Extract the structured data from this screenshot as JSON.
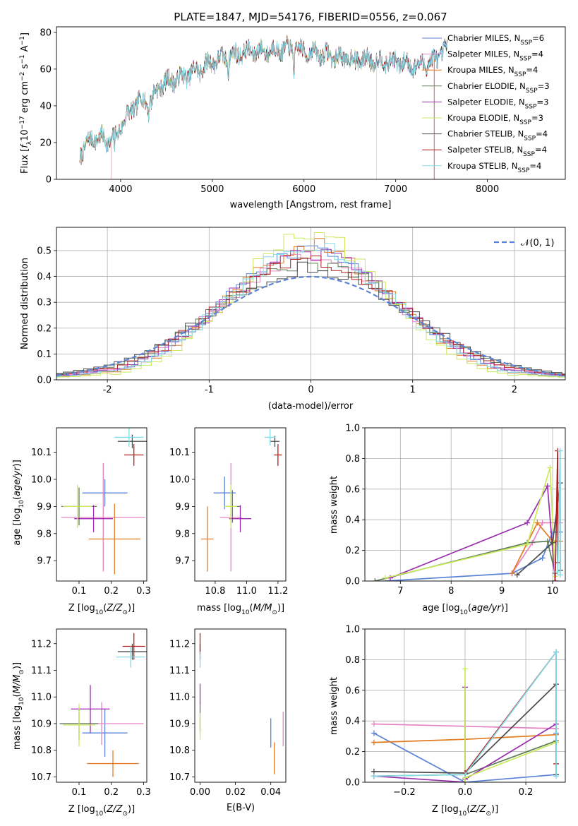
{
  "colors": {
    "Chabrier MILES": "#5b84d8",
    "Salpeter MILES": "#e684c3",
    "Kroupa MILES": "#e37b22",
    "Chabrier ELODIE": "#5e7d56",
    "Salpeter ELODIE": "#9a2eae",
    "Kroupa ELODIE": "#c9ea5b",
    "Chabrier STELIB": "#4b4b4b",
    "Salpeter STELIB": "#b11f1f",
    "Kroupa STELIB": "#82dbe6",
    "normal": "#5b84d8"
  },
  "chart_data": [
    {
      "id": "spectrum",
      "type": "line",
      "title": "PLATE=1847, MJD=54176, FIBERID=0556, z=0.067",
      "xlabel": "wavelength [Angstrom, rest frame]",
      "ylabel": "Flux [f_λ 10^-17 erg cm^-2 s^-1 A^-1]",
      "xlim": [
        3300,
        8850
      ],
      "ylim": [
        0,
        83
      ],
      "xticks": [
        4000,
        5000,
        6000,
        7000,
        8000
      ],
      "yticks": [
        0,
        20,
        40,
        60,
        80
      ],
      "grid": false,
      "legend_position": "top-right",
      "continuum_knots": {
        "x": [
          3550,
          3700,
          3900,
          4050,
          4200,
          4300,
          4450,
          4700,
          5000,
          5300,
          5600,
          5850,
          6100,
          6400,
          6700,
          7000,
          7200,
          7400,
          7550
        ],
        "y": [
          14,
          23,
          21,
          33,
          43,
          42,
          52,
          56,
          64,
          69,
          70,
          71,
          69,
          66,
          65,
          64,
          62,
          64,
          71
        ]
      },
      "series": [
        {
          "label": "Chabrier MILES",
          "nssp": "6",
          "drop": null
        },
        {
          "label": "Salpeter MILES",
          "nssp": "4",
          "drop": null
        },
        {
          "label": "Kroupa MILES",
          "nssp": "4",
          "drop": null
        },
        {
          "label": "Chabrier ELODIE",
          "nssp": "3",
          "drop": null
        },
        {
          "label": "Salpeter ELODIE",
          "nssp": "3",
          "drop": null
        },
        {
          "label": "Kroupa ELODIE",
          "nssp": "3",
          "drop": 6790
        },
        {
          "label": "Chabrier STELIB",
          "nssp": "4",
          "drop": null
        },
        {
          "label": "Salpeter STELIB",
          "nssp": "4",
          "drop": 7420
        },
        {
          "label": "Kroupa STELIB",
          "nssp": "4",
          "drop": null
        }
      ],
      "low_cutoff": 3900
    },
    {
      "id": "residual-histograms",
      "type": "histogram",
      "xlabel": "(data-model)/error",
      "ylabel": "Normed distribution",
      "xlim": [
        -2.5,
        2.5
      ],
      "ylim": [
        0,
        0.59
      ],
      "xticks": [
        -2,
        -1,
        0,
        1,
        2
      ],
      "yticks": [
        0.0,
        0.1,
        0.2,
        0.3,
        0.4,
        0.5
      ],
      "grid": true,
      "bin_width": 0.1,
      "peaks": [
        0.5,
        0.47,
        0.52,
        0.45,
        0.49,
        0.56,
        0.43,
        0.46,
        0.51
      ],
      "legend": "𝒩(0, 1)",
      "legend_position": "top-right"
    },
    {
      "id": "age-vs-Z",
      "type": "errorbar",
      "xlabel": "Z [log10(Z/Z⊙)]",
      "ylabel": "age [log10(age/yr)]",
      "xlim": [
        0.03,
        0.31
      ],
      "ylim": [
        9.625,
        10.19
      ],
      "xticks": [
        0.1,
        0.2,
        0.3
      ],
      "yticks": [
        9.7,
        9.8,
        9.9,
        10.0,
        10.1
      ],
      "points": [
        {
          "series": "Chabrier MILES",
          "x": 0.18,
          "y": 9.95,
          "xerr": 0.07,
          "yerr": 0.05
        },
        {
          "series": "Salpeter MILES",
          "x": 0.175,
          "y": 9.86,
          "xerr": 0.13,
          "yerr": 0.2
        },
        {
          "series": "Kroupa MILES",
          "x": 0.21,
          "y": 9.78,
          "xerr": 0.08,
          "yerr": 0.13
        },
        {
          "series": "Chabrier ELODIE",
          "x": 0.1,
          "y": 9.9,
          "xerr": 0.055,
          "yerr": 0.07
        },
        {
          "series": "Salpeter ELODIE",
          "x": 0.145,
          "y": 9.855,
          "xerr": 0.06,
          "yerr": 0.05
        },
        {
          "series": "Kroupa ELODIE",
          "x": 0.095,
          "y": 9.9,
          "xerr": 0.045,
          "yerr": 0.08
        },
        {
          "series": "Chabrier STELIB",
          "x": 0.265,
          "y": 10.14,
          "xerr": 0.045,
          "yerr": 0.025
        },
        {
          "series": "Salpeter STELIB",
          "x": 0.27,
          "y": 10.09,
          "xerr": 0.03,
          "yerr": 0.04
        },
        {
          "series": "Kroupa STELIB",
          "x": 0.255,
          "y": 10.155,
          "xerr": 0.045,
          "yerr": 0.035
        }
      ]
    },
    {
      "id": "age-vs-mass",
      "type": "errorbar",
      "xlabel": "mass [log10(M/M⊙)]",
      "ylabel": "",
      "xlim": [
        10.67,
        11.25
      ],
      "ylim": [
        9.625,
        10.19
      ],
      "xticks": [
        10.8,
        11.0,
        11.2
      ],
      "yticks": [
        9.7,
        9.8,
        9.9,
        10.0,
        10.1
      ],
      "points": [
        {
          "series": "Chabrier MILES",
          "x": 10.86,
          "y": 9.95,
          "xerr": 0.07,
          "yerr": 0.06
        },
        {
          "series": "Salpeter MILES",
          "x": 10.9,
          "y": 9.86,
          "xerr": 0.07,
          "yerr": 0.2
        },
        {
          "series": "Kroupa MILES",
          "x": 10.75,
          "y": 9.78,
          "xerr": 0.04,
          "yerr": 0.12
        },
        {
          "series": "Chabrier ELODIE",
          "x": 10.91,
          "y": 9.9,
          "xerr": 0.05,
          "yerr": 0.06
        },
        {
          "series": "Salpeter ELODIE",
          "x": 10.96,
          "y": 9.855,
          "xerr": 0.07,
          "yerr": 0.05
        },
        {
          "series": "Kroupa ELODIE",
          "x": 10.9,
          "y": 9.9,
          "xerr": 0.04,
          "yerr": 0.08
        },
        {
          "series": "Chabrier STELIB",
          "x": 11.18,
          "y": 10.14,
          "xerr": 0.03,
          "yerr": 0.02
        },
        {
          "series": "Salpeter STELIB",
          "x": 11.2,
          "y": 10.09,
          "xerr": 0.025,
          "yerr": 0.04
        },
        {
          "series": "Kroupa STELIB",
          "x": 11.15,
          "y": 10.155,
          "xerr": 0.035,
          "yerr": 0.03
        }
      ]
    },
    {
      "id": "massweight-vs-age",
      "type": "line",
      "xlabel": "age [log10(age/yr)]",
      "ylabel": "mass weight",
      "xlim": [
        6.3,
        10.25
      ],
      "ylim": [
        0,
        1.0
      ],
      "xticks": [
        7,
        8,
        9,
        10
      ],
      "xticklabels": [
        "7",
        "8",
        "9",
        "10"
      ],
      "yticks": [
        0.0,
        0.2,
        0.4,
        0.6,
        0.8,
        1.0
      ],
      "grid": true,
      "series": [
        {
          "name": "Chabrier MILES",
          "x": [
            6.7,
            9.2,
            9.8,
            10.0,
            10.15
          ],
          "y": [
            0.0,
            0.05,
            0.15,
            0.32,
            0.32
          ]
        },
        {
          "name": "Salpeter MILES",
          "x": [
            9.2,
            9.6,
            9.8,
            10.15
          ],
          "y": [
            0.05,
            0.25,
            0.38,
            0.38
          ]
        },
        {
          "name": "Kroupa MILES",
          "x": [
            9.2,
            9.7,
            10.0,
            10.15
          ],
          "y": [
            0.05,
            0.38,
            0.26,
            0.26
          ]
        },
        {
          "name": "Chabrier ELODIE",
          "x": [
            6.5,
            9.5,
            9.9,
            10.05
          ],
          "y": [
            0.0,
            0.25,
            0.26,
            0.05
          ]
        },
        {
          "name": "Salpeter ELODIE",
          "x": [
            6.8,
            9.5,
            9.9,
            10.05
          ],
          "y": [
            0.02,
            0.38,
            0.62,
            0.0
          ]
        },
        {
          "name": "Kroupa ELODIE",
          "x": [
            6.7,
            9.5,
            9.95,
            10.05
          ],
          "y": [
            0.02,
            0.24,
            0.74,
            0.03
          ]
        },
        {
          "name": "Chabrier STELIB",
          "x": [
            9.3,
            10.0,
            10.15,
            10.15
          ],
          "y": [
            0.04,
            0.25,
            0.64,
            0.07
          ]
        },
        {
          "name": "Salpeter STELIB",
          "x": [
            10.05,
            10.1,
            10.1
          ],
          "y": [
            0.0,
            0.85,
            0.12
          ]
        },
        {
          "name": "Kroupa STELIB",
          "x": [
            10.1,
            10.15,
            10.15
          ],
          "y": [
            0.06,
            0.85,
            0.04
          ]
        }
      ]
    },
    {
      "id": "mass-vs-Z",
      "type": "errorbar",
      "xlabel": "Z [log10(Z/Z⊙)]",
      "ylabel": "mass [log10(M/M⊙)]",
      "xlim": [
        0.03,
        0.31
      ],
      "ylim": [
        10.68,
        11.255
      ],
      "xticks": [
        0.1,
        0.2,
        0.3
      ],
      "yticks": [
        10.7,
        10.8,
        10.9,
        11.0,
        11.1,
        11.2
      ],
      "points": [
        {
          "series": "Chabrier MILES",
          "x": 0.18,
          "y": 10.865,
          "xerr": 0.07,
          "yerr": 0.09
        },
        {
          "series": "Salpeter MILES",
          "x": 0.17,
          "y": 10.9,
          "xerr": 0.13,
          "yerr": 0.08
        },
        {
          "series": "Kroupa MILES",
          "x": 0.205,
          "y": 10.75,
          "xerr": 0.08,
          "yerr": 0.05
        },
        {
          "series": "Chabrier ELODIE",
          "x": 0.1,
          "y": 10.9,
          "xerr": 0.06,
          "yerr": 0.06
        },
        {
          "series": "Salpeter ELODIE",
          "x": 0.135,
          "y": 10.955,
          "xerr": 0.06,
          "yerr": 0.09
        },
        {
          "series": "Kroupa ELODIE",
          "x": 0.1,
          "y": 10.895,
          "xerr": 0.05,
          "yerr": 0.08
        },
        {
          "series": "Chabrier STELIB",
          "x": 0.265,
          "y": 11.17,
          "xerr": 0.045,
          "yerr": 0.03
        },
        {
          "series": "Salpeter STELIB",
          "x": 0.27,
          "y": 11.19,
          "xerr": 0.035,
          "yerr": 0.05
        },
        {
          "series": "Kroupa STELIB",
          "x": 0.26,
          "y": 11.15,
          "xerr": 0.045,
          "yerr": 0.04
        }
      ]
    },
    {
      "id": "mass-vs-EBV",
      "type": "errorbar",
      "xlabel": "E(B-V)",
      "ylabel": "",
      "xlim": [
        -0.003,
        0.0485
      ],
      "ylim": [
        10.68,
        11.255
      ],
      "xticks": [
        0.0,
        0.02,
        0.04
      ],
      "xticklabels": [
        "0.00",
        "0.02",
        "0.04"
      ],
      "yticks": [
        10.7,
        10.8,
        10.9,
        11.0,
        11.1,
        11.2
      ],
      "points": [
        {
          "series": "Chabrier MILES",
          "x": 0.04,
          "y": 10.865,
          "xerr": 0,
          "yerr": 0.055
        },
        {
          "series": "Salpeter MILES",
          "x": 0.047,
          "y": 10.88,
          "xerr": 0,
          "yerr": 0.065
        },
        {
          "series": "Kroupa MILES",
          "x": 0.042,
          "y": 10.77,
          "xerr": 0,
          "yerr": 0.06
        },
        {
          "series": "Chabrier ELODIE",
          "x": 0.0,
          "y": 10.92,
          "xerr": 0,
          "yerr": 0.05
        },
        {
          "series": "Salpeter ELODIE",
          "x": 0.0,
          "y": 11.01,
          "xerr": 0,
          "yerr": 0.04
        },
        {
          "series": "Kroupa ELODIE",
          "x": 0.0,
          "y": 10.89,
          "xerr": 0,
          "yerr": 0.05
        },
        {
          "series": "Chabrier STELIB",
          "x": 0.0,
          "y": 11.17,
          "xerr": 0,
          "yerr": 0.03
        },
        {
          "series": "Salpeter STELIB",
          "x": 0.0,
          "y": 11.2,
          "xerr": 0,
          "yerr": 0.04
        },
        {
          "series": "Kroupa STELIB",
          "x": 0.0,
          "y": 11.14,
          "xerr": 0,
          "yerr": 0.03
        }
      ]
    },
    {
      "id": "massweight-vs-Z",
      "type": "line",
      "xlabel": "Z [log10(Z/Z⊙)]",
      "ylabel": "mass weight",
      "xlim": [
        -0.33,
        0.33
      ],
      "ylim": [
        0,
        1.0
      ],
      "xticks": [
        -0.2,
        0.0,
        0.2
      ],
      "xticklabels": [
        "−0.2",
        "0.0",
        "0.2"
      ],
      "yticks": [
        0.0,
        0.2,
        0.4,
        0.6,
        0.8,
        1.0
      ],
      "grid": true,
      "series": [
        {
          "name": "Chabrier MILES",
          "x": [
            -0.3,
            0.0,
            0.3,
            0.3
          ],
          "y": [
            0.32,
            0.0,
            0.05,
            0.32
          ]
        },
        {
          "name": "Salpeter MILES",
          "x": [
            -0.3,
            0.3
          ],
          "y": [
            0.38,
            0.35
          ]
        },
        {
          "name": "Kroupa MILES",
          "x": [
            -0.3,
            0.0,
            0.3
          ],
          "y": [
            0.26,
            0.28,
            0.31
          ]
        },
        {
          "name": "Chabrier ELODIE",
          "x": [
            -0.3,
            0.0,
            0.3
          ],
          "y": [
            0.04,
            0.05,
            0.27
          ]
        },
        {
          "name": "Salpeter ELODIE",
          "x": [
            -0.3,
            0.0,
            0.0,
            0.0,
            0.3
          ],
          "y": [
            0.04,
            0.0,
            0.62,
            0.02,
            0.38
          ]
        },
        {
          "name": "Kroupa ELODIE",
          "x": [
            0.0,
            0.0,
            0.0,
            0.3
          ],
          "y": [
            0.0,
            0.74,
            0.03,
            0.26
          ]
        },
        {
          "name": "Chabrier STELIB",
          "x": [
            -0.3,
            0.0,
            0.3,
            0.3
          ],
          "y": [
            0.07,
            0.06,
            0.64,
            0.05
          ]
        },
        {
          "name": "Salpeter STELIB",
          "x": [
            0.0,
            0.3,
            0.3
          ],
          "y": [
            0.06,
            0.85,
            0.12
          ]
        },
        {
          "name": "Kroupa STELIB",
          "x": [
            -0.3,
            0.0,
            0.3,
            0.3
          ],
          "y": [
            0.04,
            0.05,
            0.85,
            0.04
          ]
        }
      ]
    }
  ]
}
